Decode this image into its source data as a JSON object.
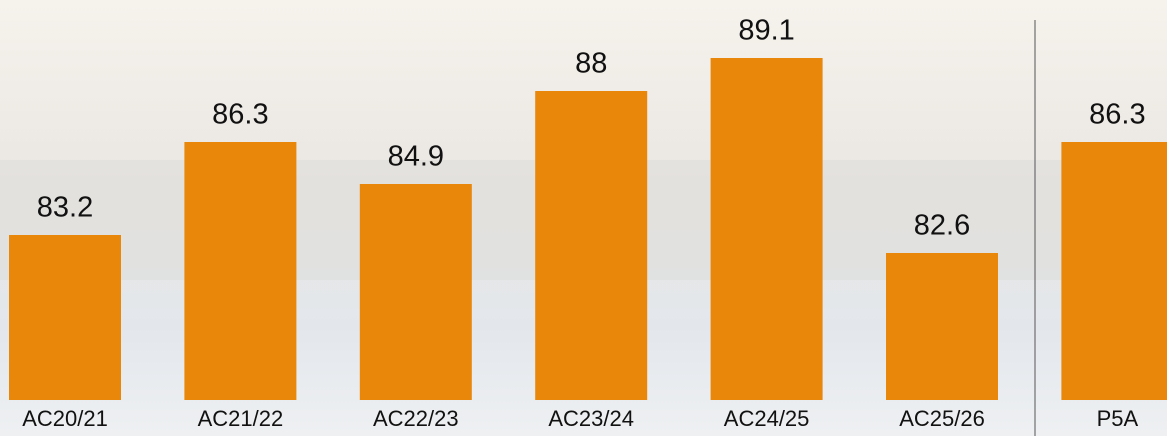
{
  "chart_data": {
    "type": "bar",
    "categories": [
      "AC20/21",
      "AC21/22",
      "AC22/23",
      "AC23/24",
      "AC24/25",
      "AC25/26",
      "P5A"
    ],
    "values": [
      83.2,
      86.3,
      84.9,
      88,
      89.1,
      82.6,
      86.3
    ],
    "color": "#e8870a",
    "ylim": [
      77.7,
      90.2
    ]
  }
}
